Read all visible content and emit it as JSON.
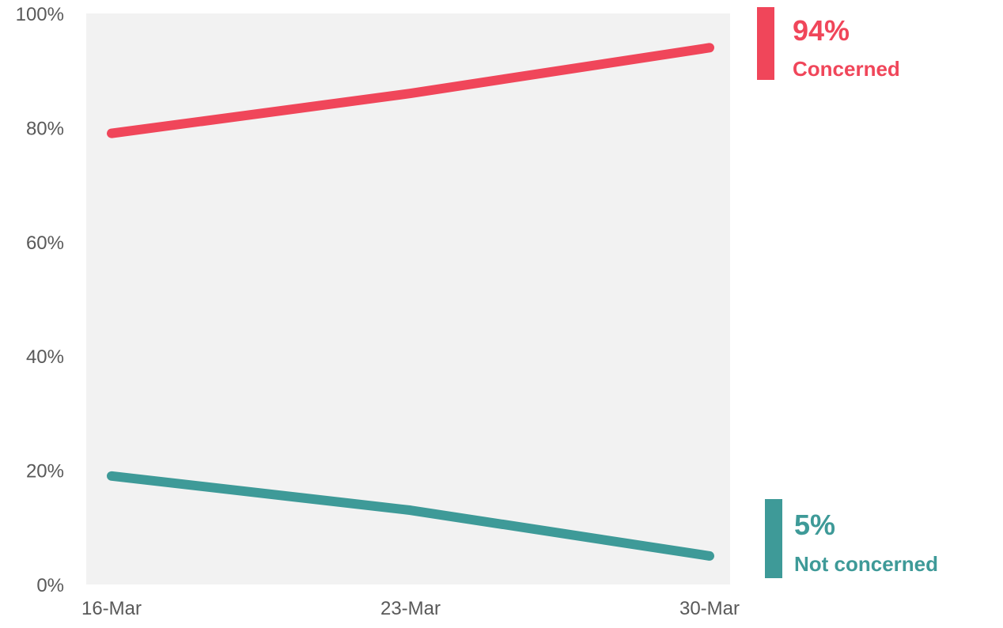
{
  "chart_data": {
    "type": "line",
    "categories": [
      "16-Mar",
      "23-Mar",
      "30-Mar"
    ],
    "ylim": [
      0,
      100
    ],
    "yticks": [
      0,
      20,
      40,
      60,
      80,
      100
    ],
    "ytick_labels": [
      "0%",
      "20%",
      "40%",
      "60%",
      "80%",
      "100%"
    ],
    "grid": false,
    "plot_background": "#f2f2f2",
    "series": [
      {
        "name": "Concerned",
        "values": [
          79,
          86,
          94
        ],
        "color": "#f0465a"
      },
      {
        "name": "Not concerned",
        "values": [
          19,
          13,
          5
        ],
        "color": "#3e9a98"
      }
    ]
  },
  "callouts": {
    "concerned": {
      "value_label": "94%",
      "name_label": "Concerned",
      "color": "#f0465a"
    },
    "not_concerned": {
      "value_label": "5%",
      "name_label": "Not concerned",
      "color": "#3e9a98"
    }
  }
}
